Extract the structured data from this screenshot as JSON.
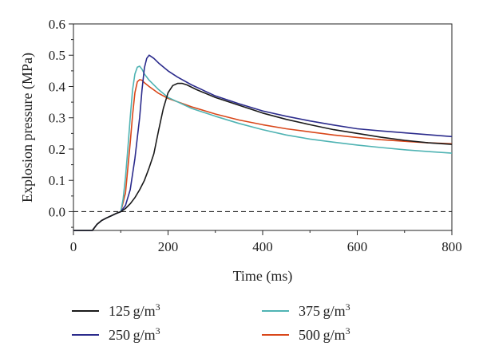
{
  "chart_data": {
    "type": "line",
    "xlabel": "Time (ms)",
    "ylabel": "Explosion pressure (MPa)",
    "xlim": [
      0,
      800
    ],
    "ylim": [
      -0.06,
      0.6
    ],
    "x_ticks": [
      0,
      200,
      400,
      600,
      800
    ],
    "y_ticks": [
      0.0,
      0.1,
      0.2,
      0.3,
      0.4,
      0.5,
      0.6
    ],
    "x_tick_labels": [
      "0",
      "200",
      "400",
      "600",
      "800"
    ],
    "y_tick_labels": [
      "0.0",
      "0.1",
      "0.2",
      "0.3",
      "0.4",
      "0.5",
      "0.6"
    ],
    "reference_line": {
      "y": 0.0,
      "style": "dashed"
    },
    "grid": false,
    "legend_position": "bottom",
    "series": [
      {
        "name": "125 g/m3",
        "color": "#1a1a1a",
        "x": [
          0,
          40,
          50,
          60,
          70,
          80,
          90,
          100,
          110,
          120,
          130,
          140,
          150,
          160,
          170,
          180,
          190,
          200,
          210,
          220,
          230,
          240,
          260,
          300,
          350,
          400,
          450,
          500,
          550,
          600,
          650,
          700,
          750,
          800
        ],
        "y": [
          -0.06,
          -0.06,
          -0.04,
          -0.028,
          -0.02,
          -0.013,
          -0.006,
          0.0,
          0.01,
          0.025,
          0.045,
          0.07,
          0.1,
          0.14,
          0.185,
          0.26,
          0.33,
          0.38,
          0.403,
          0.41,
          0.41,
          0.405,
          0.39,
          0.365,
          0.34,
          0.315,
          0.295,
          0.278,
          0.262,
          0.25,
          0.238,
          0.228,
          0.22,
          0.215
        ]
      },
      {
        "name": "250 g/m3",
        "color": "#2b2b8c",
        "x": [
          0,
          40,
          50,
          60,
          70,
          80,
          90,
          100,
          110,
          120,
          130,
          140,
          145,
          150,
          155,
          160,
          170,
          180,
          200,
          220,
          250,
          300,
          350,
          400,
          450,
          500,
          550,
          600,
          650,
          700,
          750,
          800
        ],
        "y": [
          -0.06,
          -0.06,
          -0.04,
          -0.028,
          -0.02,
          -0.013,
          -0.006,
          0.0,
          0.02,
          0.07,
          0.17,
          0.3,
          0.39,
          0.46,
          0.49,
          0.5,
          0.49,
          0.475,
          0.45,
          0.43,
          0.405,
          0.37,
          0.345,
          0.322,
          0.305,
          0.29,
          0.277,
          0.265,
          0.258,
          0.252,
          0.246,
          0.24
        ]
      },
      {
        "name": "375 g/m3",
        "color": "#4fb3b3",
        "x": [
          0,
          40,
          50,
          60,
          70,
          80,
          90,
          100,
          105,
          110,
          115,
          120,
          125,
          130,
          135,
          140,
          145,
          150,
          160,
          180,
          200,
          250,
          300,
          350,
          400,
          450,
          500,
          550,
          600,
          650,
          700,
          750,
          800
        ],
        "y": [
          -0.06,
          -0.06,
          -0.04,
          -0.028,
          -0.02,
          -0.013,
          -0.006,
          0.0,
          0.04,
          0.11,
          0.2,
          0.3,
          0.39,
          0.44,
          0.462,
          0.465,
          0.455,
          0.44,
          0.42,
          0.39,
          0.365,
          0.33,
          0.305,
          0.282,
          0.262,
          0.245,
          0.232,
          0.222,
          0.213,
          0.205,
          0.198,
          0.192,
          0.187
        ]
      },
      {
        "name": "500 g/m3",
        "color": "#d9471a",
        "x": [
          0,
          40,
          50,
          60,
          70,
          80,
          90,
          100,
          110,
          120,
          125,
          130,
          135,
          140,
          145,
          150,
          160,
          180,
          200,
          250,
          300,
          350,
          400,
          450,
          500,
          550,
          600,
          650,
          700,
          750,
          800
        ],
        "y": [
          -0.06,
          -0.06,
          -0.04,
          -0.028,
          -0.02,
          -0.013,
          -0.006,
          0.0,
          0.06,
          0.22,
          0.31,
          0.38,
          0.415,
          0.422,
          0.42,
          0.412,
          0.4,
          0.378,
          0.362,
          0.335,
          0.312,
          0.293,
          0.278,
          0.265,
          0.255,
          0.245,
          0.237,
          0.23,
          0.225,
          0.22,
          0.217
        ]
      }
    ]
  },
  "legend": [
    {
      "value": "125",
      "unit": "g/m",
      "exp": "3"
    },
    {
      "value": "250",
      "unit": "g/m",
      "exp": "3"
    },
    {
      "value": "375",
      "unit": "g/m",
      "exp": "3"
    },
    {
      "value": "500",
      "unit": "g/m",
      "exp": "3"
    }
  ]
}
